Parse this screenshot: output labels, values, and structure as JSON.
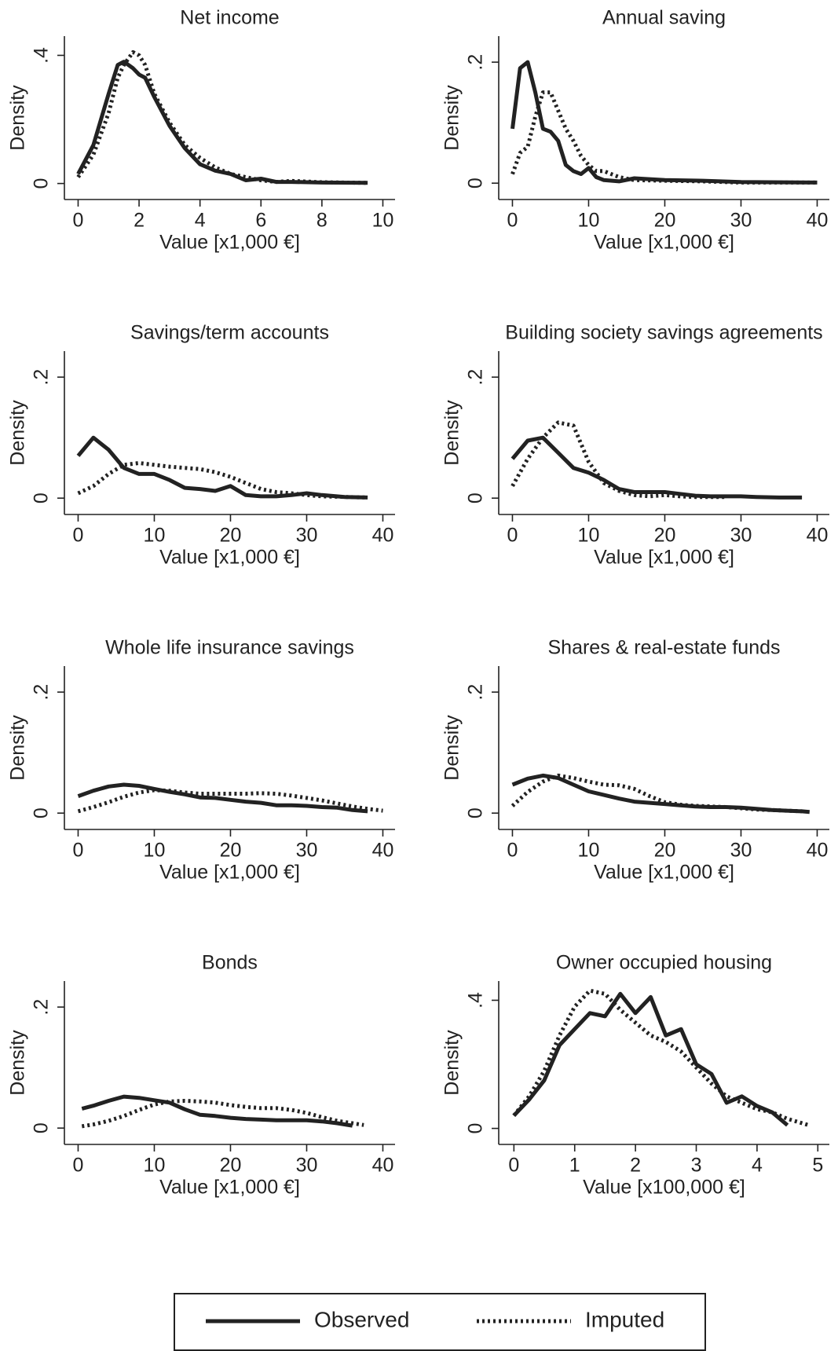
{
  "chart_data": [
    {
      "type": "line",
      "title": "Net income",
      "xlabel": "Value [x1,000 €]",
      "ylabel": "Density",
      "xlim": [
        -0.45,
        10.4
      ],
      "ylim": [
        -0.05,
        0.46
      ],
      "xticks": [
        0,
        2,
        4,
        6,
        8,
        10
      ],
      "yticks": [
        0,
        {
          "value": 0.4,
          "label": ".4"
        }
      ],
      "x": [
        0,
        0.5,
        1,
        1.3,
        1.5,
        1.8,
        2,
        2.2,
        2.5,
        3,
        3.5,
        4,
        4.5,
        5,
        5.5,
        6,
        6.5,
        7,
        8,
        9.5
      ],
      "series": [
        {
          "color": "#222222",
          "style": "solid",
          "values": [
            0.03,
            0.12,
            0.28,
            0.37,
            0.38,
            0.36,
            0.34,
            0.33,
            0.27,
            0.18,
            0.11,
            0.06,
            0.04,
            0.03,
            0.01,
            0.015,
            0.005,
            0.005,
            0.003,
            0.002
          ]
        },
        {
          "color": "#222222",
          "style": "dotted",
          "values": [
            0.02,
            0.09,
            0.22,
            0.33,
            0.37,
            0.41,
            0.4,
            0.37,
            0.28,
            0.19,
            0.12,
            0.08,
            0.05,
            0.03,
            0.02,
            0.01,
            0.005,
            0.008,
            0.004,
            0.002
          ]
        }
      ]
    },
    {
      "type": "line",
      "title": "Annual saving",
      "xlabel": "Value [x1,000 €]",
      "ylabel": "Density",
      "xlim": [
        -1.8,
        41.6
      ],
      "ylim": [
        -0.027,
        0.243
      ],
      "xticks": [
        0,
        10,
        20,
        30,
        40
      ],
      "yticks": [
        0,
        {
          "value": 0.2,
          "label": ".2"
        }
      ],
      "x": [
        0,
        1,
        2,
        3,
        4,
        5,
        6,
        7,
        8,
        9,
        10,
        11,
        12,
        14,
        16,
        20,
        25,
        30,
        40
      ],
      "series": [
        {
          "color": "#222222",
          "style": "solid",
          "values": [
            0.09,
            0.19,
            0.2,
            0.15,
            0.09,
            0.085,
            0.07,
            0.03,
            0.02,
            0.015,
            0.025,
            0.01,
            0.005,
            0.003,
            0.008,
            0.005,
            0.004,
            0.002,
            0.001
          ]
        },
        {
          "color": "#222222",
          "style": "dotted",
          "values": [
            0.015,
            0.05,
            0.06,
            0.11,
            0.15,
            0.15,
            0.12,
            0.09,
            0.07,
            0.045,
            0.03,
            0.02,
            0.02,
            0.01,
            0.005,
            0.004,
            0.003,
            0.001,
            0.001
          ]
        }
      ]
    },
    {
      "type": "line",
      "title": "Savings/term accounts",
      "xlabel": "Value [x1,000 €]",
      "ylabel": "Density",
      "xlim": [
        -1.8,
        41.6
      ],
      "ylim": [
        -0.027,
        0.243
      ],
      "xticks": [
        0,
        10,
        20,
        30,
        40
      ],
      "yticks": [
        0,
        {
          "value": 0.2,
          "label": ".2"
        }
      ],
      "x": [
        0,
        2,
        4,
        6,
        8,
        10,
        12,
        14,
        16,
        18,
        20,
        22,
        24,
        26,
        28,
        30,
        32,
        35,
        38
      ],
      "series": [
        {
          "color": "#222222",
          "style": "solid",
          "values": [
            0.07,
            0.1,
            0.08,
            0.05,
            0.04,
            0.04,
            0.03,
            0.017,
            0.015,
            0.012,
            0.02,
            0.005,
            0.003,
            0.003,
            0.005,
            0.008,
            0.005,
            0.002,
            0.001
          ]
        },
        {
          "color": "#222222",
          "style": "dotted",
          "values": [
            0.008,
            0.02,
            0.04,
            0.055,
            0.058,
            0.055,
            0.052,
            0.05,
            0.048,
            0.043,
            0.035,
            0.025,
            0.015,
            0.01,
            0.008,
            0.005,
            0.003,
            0.002,
            0.001
          ]
        }
      ]
    },
    {
      "type": "line",
      "title": "Building society savings agreements",
      "xlabel": "Value [x1,000 €]",
      "ylabel": "Density",
      "xlim": [
        -1.8,
        41.6
      ],
      "ylim": [
        -0.027,
        0.243
      ],
      "xticks": [
        0,
        10,
        20,
        30,
        40
      ],
      "yticks": [
        0,
        {
          "value": 0.2,
          "label": ".2"
        }
      ],
      "x": [
        0,
        2,
        4,
        6,
        8,
        10,
        12,
        14,
        16,
        18,
        20,
        22,
        24,
        26,
        28,
        30,
        32,
        35,
        38
      ],
      "series": [
        {
          "color": "#222222",
          "style": "solid",
          "values": [
            0.065,
            0.095,
            0.1,
            0.075,
            0.05,
            0.042,
            0.03,
            0.015,
            0.01,
            0.01,
            0.01,
            0.007,
            0.004,
            0.003,
            0.003,
            0.003,
            0.002,
            0.001,
            0.001
          ]
        },
        {
          "color": "#222222",
          "style": "dotted",
          "values": [
            0.02,
            0.065,
            0.1,
            0.125,
            0.12,
            0.06,
            0.025,
            0.012,
            0.005,
            0.003,
            0.005,
            0.003,
            0.002,
            0.002,
            0.002,
            null,
            null,
            null,
            null
          ]
        }
      ]
    },
    {
      "type": "line",
      "title": "Whole life insurance savings",
      "xlabel": "Value [x1,000 €]",
      "ylabel": "Density",
      "xlim": [
        -1.8,
        41.6
      ],
      "ylim": [
        -0.027,
        0.243
      ],
      "xticks": [
        0,
        10,
        20,
        30,
        40
      ],
      "yticks": [
        0,
        {
          "value": 0.2,
          "label": ".2"
        }
      ],
      "x": [
        0,
        2,
        4,
        6,
        8,
        10,
        12,
        14,
        16,
        18,
        20,
        22,
        24,
        26,
        28,
        30,
        32,
        34,
        36,
        38,
        40
      ],
      "series": [
        {
          "color": "#222222",
          "style": "solid",
          "values": [
            0.028,
            0.037,
            0.044,
            0.047,
            0.045,
            0.04,
            0.035,
            0.031,
            0.026,
            0.025,
            0.022,
            0.019,
            0.017,
            0.013,
            0.013,
            0.012,
            0.01,
            0.009,
            0.005,
            0.003,
            null
          ]
        },
        {
          "color": "#222222",
          "style": "dotted",
          "values": [
            0.003,
            0.01,
            0.018,
            0.027,
            0.034,
            0.038,
            0.037,
            0.034,
            0.032,
            0.032,
            0.032,
            0.032,
            0.033,
            0.032,
            0.029,
            0.025,
            0.021,
            0.016,
            0.011,
            0.007,
            0.004
          ]
        }
      ]
    },
    {
      "type": "line",
      "title": "Shares & real-estate funds",
      "xlabel": "Value [x1,000 €]",
      "ylabel": "Density",
      "xlim": [
        -1.8,
        41.6
      ],
      "ylim": [
        -0.027,
        0.243
      ],
      "xticks": [
        0,
        10,
        20,
        30,
        40
      ],
      "yticks": [
        0,
        {
          "value": 0.2,
          "label": ".2"
        }
      ],
      "x": [
        0,
        2,
        4,
        6,
        8,
        10,
        12,
        14,
        16,
        18,
        20,
        22,
        24,
        26,
        28,
        30,
        32,
        34,
        36,
        38,
        39
      ],
      "series": [
        {
          "color": "#222222",
          "style": "solid",
          "values": [
            0.047,
            0.057,
            0.062,
            0.058,
            0.047,
            0.036,
            0.03,
            0.024,
            0.019,
            0.017,
            0.015,
            0.013,
            0.011,
            0.01,
            0.01,
            0.009,
            0.007,
            0.005,
            0.004,
            0.003,
            0.002
          ]
        },
        {
          "color": "#222222",
          "style": "dotted",
          "values": [
            0.012,
            0.035,
            0.052,
            0.062,
            0.058,
            0.052,
            0.047,
            0.046,
            0.04,
            0.028,
            0.018,
            0.014,
            0.012,
            0.011,
            0.01,
            0.008,
            0.006,
            0.005,
            0.004,
            0.003,
            null
          ]
        }
      ]
    },
    {
      "type": "line",
      "title": "Bonds",
      "xlabel": "Value [x1,000 €]",
      "ylabel": "Density",
      "xlim": [
        -1.8,
        41.6
      ],
      "ylim": [
        -0.027,
        0.243
      ],
      "xticks": [
        0,
        10,
        20,
        30,
        40
      ],
      "yticks": [
        0,
        {
          "value": 0.2,
          "label": ".2"
        }
      ],
      "x": [
        0.5,
        2,
        4,
        6,
        8,
        10,
        12,
        14,
        16,
        18,
        20,
        22,
        24,
        26,
        28,
        30,
        32,
        34,
        36,
        37.5
      ],
      "series": [
        {
          "color": "#222222",
          "style": "solid",
          "values": [
            0.032,
            0.037,
            0.045,
            0.052,
            0.05,
            0.046,
            0.042,
            0.031,
            0.022,
            0.02,
            0.017,
            0.015,
            0.014,
            0.013,
            0.013,
            0.013,
            0.011,
            0.008,
            0.004,
            null
          ]
        },
        {
          "color": "#222222",
          "style": "dotted",
          "values": [
            0.003,
            0.006,
            0.012,
            0.02,
            0.03,
            0.039,
            0.044,
            0.045,
            0.044,
            0.042,
            0.038,
            0.035,
            0.033,
            0.033,
            0.03,
            0.025,
            0.018,
            0.012,
            0.008,
            0.005
          ]
        }
      ]
    },
    {
      "type": "line",
      "title": "Owner occupied housing",
      "xlabel": "Value [x100,000 €]",
      "ylabel": "Density",
      "xlim": [
        -0.25,
        5.19
      ],
      "ylim": [
        -0.05,
        0.46
      ],
      "xticks": [
        0,
        1,
        2,
        3,
        4,
        5
      ],
      "yticks": [
        0,
        {
          "value": 0.4,
          "label": ".4"
        }
      ],
      "x": [
        0,
        0.25,
        0.5,
        0.75,
        1,
        1.25,
        1.5,
        1.75,
        2,
        2.25,
        2.5,
        2.75,
        3,
        3.25,
        3.5,
        3.75,
        4,
        4.25,
        4.5,
        4.85
      ],
      "series": [
        {
          "color": "#222222",
          "style": "solid",
          "values": [
            0.04,
            0.09,
            0.15,
            0.26,
            0.31,
            0.36,
            0.35,
            0.42,
            0.36,
            0.41,
            0.29,
            0.31,
            0.2,
            0.17,
            0.08,
            0.1,
            0.07,
            0.05,
            0.01,
            null
          ]
        },
        {
          "color": "#222222",
          "style": "dotted",
          "values": [
            0.04,
            0.1,
            0.18,
            0.29,
            0.38,
            0.43,
            0.42,
            0.37,
            0.33,
            0.29,
            0.27,
            0.24,
            0.19,
            0.14,
            0.1,
            0.08,
            0.06,
            0.05,
            0.03,
            0.01
          ]
        }
      ]
    }
  ],
  "legend": {
    "entries": [
      {
        "name": "Observed",
        "style": "solid",
        "color": "#222222"
      },
      {
        "name": "Imputed",
        "style": "dotted",
        "color": "#222222"
      }
    ]
  }
}
